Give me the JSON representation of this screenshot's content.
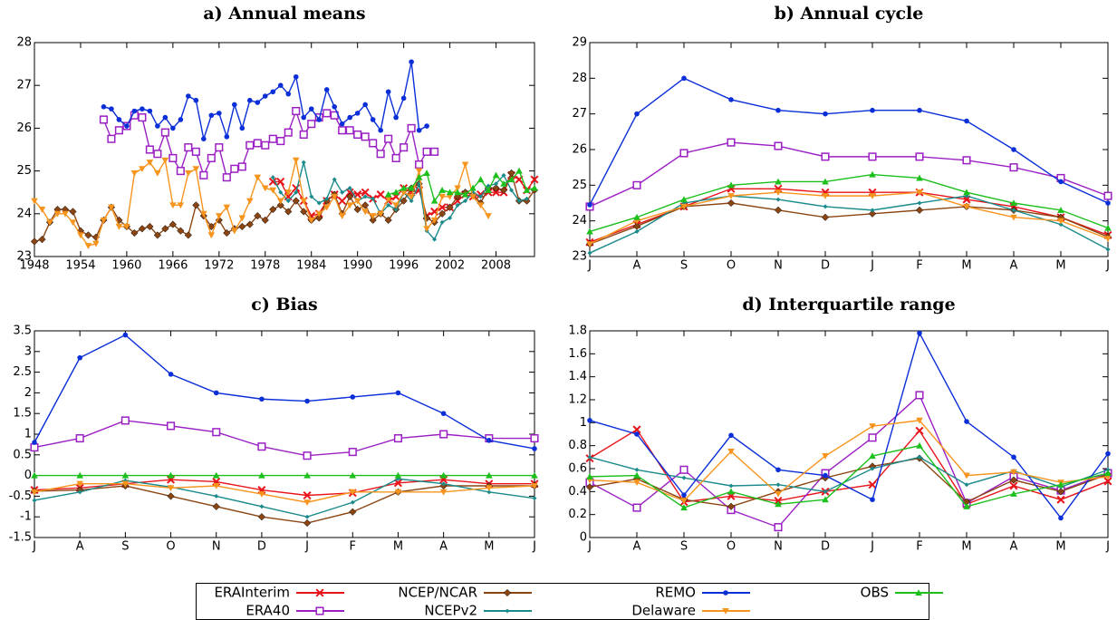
{
  "chart_data": [
    {
      "type": "line",
      "title": "a) Annual means",
      "legend": "bottom",
      "x": [
        1948,
        1949,
        1950,
        1951,
        1952,
        1953,
        1954,
        1955,
        1956,
        1957,
        1958,
        1959,
        1960,
        1961,
        1962,
        1963,
        1964,
        1965,
        1966,
        1967,
        1968,
        1969,
        1970,
        1971,
        1972,
        1973,
        1974,
        1975,
        1976,
        1977,
        1978,
        1979,
        1980,
        1981,
        1982,
        1983,
        1984,
        1985,
        1986,
        1987,
        1988,
        1989,
        1990,
        1991,
        1992,
        1993,
        1994,
        1995,
        1996,
        1997,
        1998,
        1999,
        2000,
        2001,
        2002,
        2003,
        2004,
        2005,
        2006,
        2007,
        2008,
        2009,
        2010,
        2011,
        2012,
        2013
      ],
      "xlim": [
        1948,
        2013
      ],
      "xticks": [
        1948,
        1954,
        1960,
        1966,
        1972,
        1978,
        1984,
        1990,
        1996,
        2002,
        2008
      ],
      "ylim": [
        23,
        28
      ],
      "yticks": [
        23,
        24,
        25,
        26,
        27,
        28
      ],
      "series": [
        {
          "name": "ERAInterim",
          "color": "#e8141a",
          "marker": "x",
          "values": [
            null,
            null,
            null,
            null,
            null,
            null,
            null,
            null,
            null,
            null,
            null,
            null,
            null,
            null,
            null,
            null,
            null,
            null,
            null,
            null,
            null,
            null,
            null,
            null,
            null,
            null,
            null,
            null,
            null,
            null,
            null,
            24.75,
            24.75,
            24.4,
            24.6,
            24.3,
            23.95,
            24.0,
            24.3,
            24.45,
            24.3,
            24.5,
            24.45,
            24.5,
            24.35,
            24.45,
            24.3,
            24.4,
            24.6,
            24.5,
            24.55,
            23.95,
            24.05,
            24.15,
            24.15,
            24.3,
            24.45,
            24.4,
            24.45,
            24.5,
            24.5,
            24.5,
            24.9,
            24.8,
            24.55,
            24.8
          ]
        },
        {
          "name": "ERA40",
          "color": "#9b20c4",
          "marker": "square-open",
          "values": [
            null,
            null,
            null,
            null,
            null,
            null,
            null,
            null,
            null,
            26.2,
            25.75,
            25.95,
            26.05,
            26.3,
            26.25,
            25.5,
            25.4,
            25.9,
            25.3,
            25.0,
            25.55,
            25.45,
            24.9,
            25.3,
            25.55,
            24.85,
            25.05,
            25.1,
            25.6,
            25.65,
            25.6,
            25.75,
            25.7,
            25.9,
            26.4,
            25.85,
            26.1,
            26.25,
            26.35,
            26.3,
            25.95,
            25.95,
            25.85,
            25.8,
            25.65,
            25.4,
            25.75,
            25.3,
            25.55,
            26.0,
            25.15,
            25.45,
            25.45,
            null,
            null,
            null,
            null,
            null,
            null,
            null,
            null,
            null,
            null,
            null,
            null,
            null
          ]
        },
        {
          "name": "NCEP/NCAR",
          "color": "#8b4513",
          "marker": "diamond",
          "values": [
            23.35,
            23.4,
            23.8,
            24.1,
            24.1,
            24.05,
            23.6,
            23.5,
            23.45,
            23.85,
            24.15,
            23.85,
            23.7,
            23.55,
            23.65,
            23.7,
            23.5,
            23.65,
            23.75,
            23.6,
            23.5,
            24.2,
            23.95,
            23.7,
            23.85,
            23.55,
            23.65,
            23.7,
            23.75,
            23.95,
            23.85,
            24.1,
            24.2,
            24.05,
            24.3,
            24.05,
            23.85,
            23.9,
            24.3,
            24.45,
            24.0,
            24.4,
            24.1,
            24.2,
            23.85,
            24.0,
            23.85,
            24.1,
            24.3,
            24.6,
            24.7,
            23.9,
            23.8,
            24.0,
            24.15,
            24.4,
            24.5,
            24.45,
            24.25,
            24.6,
            24.6,
            24.55,
            24.95,
            24.3,
            24.3,
            24.55
          ]
        },
        {
          "name": "NCEPv2",
          "color": "#1a8a8a",
          "marker": "small-diamond",
          "values": [
            null,
            null,
            null,
            null,
            null,
            null,
            null,
            null,
            null,
            null,
            null,
            null,
            null,
            null,
            null,
            null,
            null,
            null,
            null,
            null,
            null,
            null,
            null,
            null,
            null,
            null,
            null,
            null,
            null,
            null,
            null,
            24.85,
            24.5,
            24.3,
            24.5,
            25.2,
            24.4,
            24.25,
            24.35,
            24.8,
            24.5,
            24.6,
            24.3,
            24.4,
            24.35,
            24.0,
            24.2,
            24.1,
            24.5,
            24.3,
            24.7,
            23.6,
            23.4,
            23.8,
            23.9,
            24.2,
            24.3,
            24.5,
            24.4,
            24.65,
            24.7,
            24.9,
            24.55,
            24.3,
            24.35,
            null
          ]
        },
        {
          "name": "REMO",
          "color": "#0a2ed8",
          "marker": "circle",
          "values": [
            null,
            null,
            null,
            null,
            null,
            null,
            null,
            null,
            null,
            26.5,
            26.45,
            26.2,
            26.05,
            26.4,
            26.45,
            26.4,
            26.05,
            26.25,
            26.0,
            26.2,
            26.75,
            26.65,
            25.75,
            26.3,
            26.35,
            25.8,
            26.55,
            26.0,
            26.65,
            26.6,
            26.75,
            26.85,
            27.0,
            26.8,
            27.2,
            26.25,
            26.45,
            26.2,
            26.9,
            26.5,
            26.1,
            26.25,
            26.35,
            26.55,
            26.2,
            25.95,
            26.85,
            26.25,
            26.7,
            27.55,
            25.95,
            26.05,
            null,
            null,
            null,
            null,
            null,
            null,
            null,
            null,
            null,
            null,
            null,
            null,
            null,
            null
          ]
        },
        {
          "name": "Delaware",
          "color": "#f7941d",
          "marker": "triangle-down",
          "values": [
            24.3,
            24.1,
            23.8,
            24.0,
            24.0,
            23.8,
            23.5,
            23.25,
            23.3,
            23.85,
            24.15,
            23.7,
            23.7,
            24.95,
            25.05,
            25.2,
            24.95,
            25.25,
            24.2,
            24.2,
            24.95,
            25.05,
            24.0,
            23.5,
            23.95,
            24.15,
            23.6,
            23.9,
            24.3,
            24.85,
            24.6,
            24.55,
            24.3,
            24.5,
            25.25,
            24.3,
            23.85,
            24.0,
            24.15,
            24.4,
            23.95,
            24.2,
            24.3,
            24.05,
            23.95,
            24.0,
            24.35,
            24.2,
            24.5,
            24.4,
            25.0,
            23.65,
            23.85,
            24.4,
            24.4,
            24.6,
            25.15,
            24.4,
            24.2,
            23.95,
            null,
            null,
            null,
            null,
            null,
            null
          ]
        },
        {
          "name": "OBS",
          "color": "#1cbf1c",
          "marker": "triangle-up",
          "values": [
            null,
            null,
            null,
            null,
            null,
            null,
            null,
            null,
            null,
            null,
            null,
            null,
            null,
            null,
            null,
            null,
            null,
            null,
            null,
            null,
            null,
            null,
            null,
            null,
            null,
            null,
            null,
            null,
            null,
            null,
            null,
            null,
            null,
            null,
            null,
            null,
            null,
            null,
            null,
            null,
            null,
            null,
            null,
            null,
            null,
            null,
            24.45,
            24.5,
            24.6,
            24.6,
            24.85,
            24.95,
            24.3,
            24.55,
            24.5,
            24.5,
            24.45,
            24.6,
            24.8,
            24.55,
            24.9,
            24.7,
            24.8,
            25.0,
            24.55,
            24.6
          ]
        }
      ]
    },
    {
      "type": "line",
      "title": "b) Annual cycle",
      "categories": [
        "J",
        "A",
        "S",
        "O",
        "N",
        "D",
        "J",
        "F",
        "M",
        "A",
        "M",
        "J"
      ],
      "ylim": [
        23,
        29
      ],
      "yticks": [
        23,
        24,
        25,
        26,
        27,
        28,
        29
      ],
      "series": [
        {
          "name": "ERAInterim",
          "color": "#e8141a",
          "marker": "x",
          "values": [
            23.4,
            23.9,
            24.4,
            24.9,
            24.9,
            24.8,
            24.8,
            24.8,
            24.6,
            24.4,
            24.1,
            23.6
          ]
        },
        {
          "name": "ERA40",
          "color": "#9b20c4",
          "marker": "square-open",
          "values": [
            24.4,
            25.0,
            25.9,
            26.2,
            26.1,
            25.8,
            25.8,
            25.8,
            25.7,
            25.5,
            25.2,
            24.7
          ]
        },
        {
          "name": "NCEP/NCAR",
          "color": "#8b4513",
          "marker": "diamond",
          "values": [
            23.35,
            23.85,
            24.4,
            24.5,
            24.3,
            24.1,
            24.2,
            24.3,
            24.4,
            24.3,
            24.1,
            23.55
          ]
        },
        {
          "name": "NCEPv2",
          "color": "#1a8a8a",
          "marker": "small-diamond",
          "values": [
            23.1,
            23.7,
            24.5,
            24.7,
            24.6,
            24.4,
            24.3,
            24.5,
            24.7,
            24.3,
            23.9,
            23.2
          ]
        },
        {
          "name": "REMO",
          "color": "#0a2ed8",
          "marker": "circle",
          "values": [
            24.45,
            27.0,
            28.0,
            27.4,
            27.1,
            27.0,
            27.1,
            27.1,
            26.8,
            26.0,
            25.1,
            24.5
          ]
        },
        {
          "name": "Delaware",
          "color": "#f7941d",
          "marker": "triangle-down",
          "values": [
            23.35,
            24.0,
            24.4,
            24.7,
            24.8,
            24.7,
            24.7,
            24.8,
            24.4,
            24.1,
            24.0,
            23.5
          ]
        },
        {
          "name": "OBS",
          "color": "#1cbf1c",
          "marker": "triangle-up",
          "values": [
            23.7,
            24.1,
            24.6,
            25.0,
            25.1,
            25.1,
            25.3,
            25.2,
            24.8,
            24.5,
            24.3,
            23.8
          ]
        }
      ]
    },
    {
      "type": "line",
      "title": "c) Bias",
      "categories": [
        "J",
        "A",
        "S",
        "O",
        "N",
        "D",
        "J",
        "F",
        "M",
        "A",
        "M",
        "J"
      ],
      "ylim": [
        -1.5,
        3.5
      ],
      "yticks": [
        -1.5,
        -1,
        -0.5,
        0,
        0.5,
        1,
        1.5,
        2,
        2.5,
        3,
        3.5
      ],
      "series": [
        {
          "name": "ERAInterim",
          "color": "#e8141a",
          "marker": "x",
          "values": [
            -0.35,
            -0.3,
            -0.2,
            -0.1,
            -0.15,
            -0.35,
            -0.48,
            -0.42,
            -0.18,
            -0.1,
            -0.2,
            -0.2
          ]
        },
        {
          "name": "ERA40",
          "color": "#9b20c4",
          "marker": "square-open",
          "values": [
            0.68,
            0.9,
            1.33,
            1.2,
            1.05,
            0.7,
            0.48,
            0.57,
            0.9,
            1.0,
            0.9,
            0.9
          ]
        },
        {
          "name": "NCEP/NCAR",
          "color": "#8b4513",
          "marker": "diamond",
          "values": [
            -0.38,
            -0.35,
            -0.25,
            -0.5,
            -0.75,
            -1.0,
            -1.15,
            -0.88,
            -0.4,
            -0.25,
            -0.25,
            -0.25
          ]
        },
        {
          "name": "NCEPv2",
          "color": "#1a8a8a",
          "marker": "small-diamond",
          "values": [
            -0.6,
            -0.4,
            -0.12,
            -0.28,
            -0.5,
            -0.75,
            -1.0,
            -0.65,
            -0.08,
            -0.2,
            -0.4,
            -0.55
          ]
        },
        {
          "name": "REMO",
          "color": "#0a2ed8",
          "marker": "circle",
          "values": [
            0.8,
            2.85,
            3.4,
            2.45,
            2.0,
            1.85,
            1.8,
            1.9,
            2.0,
            1.5,
            0.85,
            0.65
          ]
        },
        {
          "name": "Delaware",
          "color": "#f7941d",
          "marker": "triangle-down",
          "values": [
            -0.4,
            -0.2,
            -0.2,
            -0.3,
            -0.25,
            -0.45,
            -0.65,
            -0.4,
            -0.4,
            -0.4,
            -0.3,
            -0.25
          ]
        },
        {
          "name": "OBS",
          "color": "#1cbf1c",
          "marker": "triangle-up",
          "values": [
            0,
            0,
            0,
            0,
            0,
            0,
            0,
            0,
            0,
            0,
            0,
            0
          ]
        }
      ]
    },
    {
      "type": "line",
      "title": "d) Interquartile range",
      "categories": [
        "J",
        "A",
        "S",
        "O",
        "N",
        "D",
        "J",
        "F",
        "M",
        "A",
        "M",
        "J"
      ],
      "ylim": [
        0,
        1.8
      ],
      "yticks": [
        0,
        0.2,
        0.4,
        0.6,
        0.8,
        1,
        1.2,
        1.4,
        1.6,
        1.8
      ],
      "series": [
        {
          "name": "ERAInterim",
          "color": "#e8141a",
          "marker": "x",
          "values": [
            0.69,
            0.94,
            0.31,
            0.36,
            0.32,
            0.4,
            0.46,
            0.93,
            0.29,
            0.45,
            0.33,
            0.49
          ]
        },
        {
          "name": "ERA40",
          "color": "#9b20c4",
          "marker": "square-open",
          "values": [
            0.48,
            0.26,
            0.59,
            0.24,
            0.09,
            0.56,
            0.87,
            1.24,
            0.3,
            0.53,
            0.41,
            0.56
          ]
        },
        {
          "name": "NCEP/NCAR",
          "color": "#8b4513",
          "marker": "diamond",
          "values": [
            0.44,
            0.51,
            0.33,
            0.27,
            0.4,
            0.52,
            0.62,
            0.69,
            0.31,
            0.5,
            0.4,
            0.55
          ]
        },
        {
          "name": "NCEPv2",
          "color": "#1a8a8a",
          "marker": "small-diamond",
          "values": [
            0.7,
            0.59,
            0.52,
            0.45,
            0.46,
            0.4,
            0.6,
            0.7,
            0.46,
            0.58,
            0.44,
            0.59
          ]
        },
        {
          "name": "REMO",
          "color": "#0a2ed8",
          "marker": "circle",
          "values": [
            1.02,
            0.9,
            0.37,
            0.89,
            0.59,
            0.54,
            0.33,
            1.78,
            1.01,
            0.7,
            0.17,
            0.73
          ]
        },
        {
          "name": "Delaware",
          "color": "#f7941d",
          "marker": "triangle-down",
          "values": [
            0.5,
            0.48,
            0.32,
            0.75,
            0.38,
            0.71,
            0.97,
            1.02,
            0.54,
            0.57,
            0.48,
            0.53
          ]
        },
        {
          "name": "OBS",
          "color": "#1cbf1c",
          "marker": "triangle-up",
          "values": [
            0.53,
            0.54,
            0.26,
            0.4,
            0.29,
            0.33,
            0.71,
            0.8,
            0.27,
            0.38,
            0.46,
            0.56
          ]
        }
      ]
    }
  ]
}
